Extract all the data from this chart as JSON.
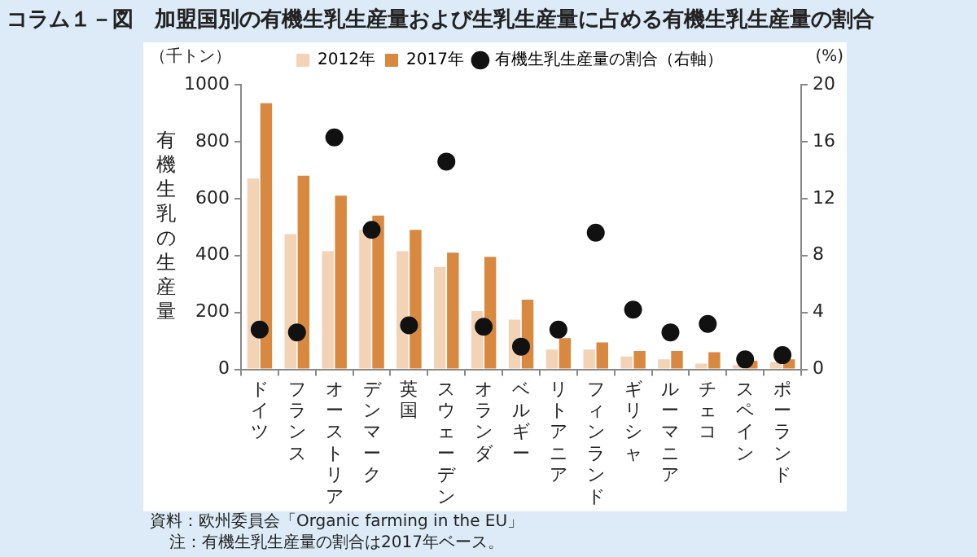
{
  "chart_data": {
    "type": "bar",
    "title": "コラム１－図　加盟国別の有機生乳生産量および生乳生産量に占める有機生乳生産量の割合",
    "ylabel": "有機生乳の生産量",
    "y2label": "(%)",
    "categories": [
      "ドイツ",
      "フランス",
      "オーストリア",
      "デンマーク",
      "英国",
      "スウェーデン",
      "オランダ",
      "ベルギー",
      "リトアニア",
      "フィンランド",
      "ギリシャ",
      "ルーマニア",
      "チェコ",
      "スペイン",
      "ポーランド"
    ],
    "series": [
      {
        "name": "2012年",
        "color": "#f2d3b6",
        "values": [
          670,
          475,
          415,
          490,
          415,
          360,
          205,
          175,
          70,
          70,
          45,
          35,
          20,
          15,
          25
        ]
      },
      {
        "name": "2017年",
        "color": "#d9883f",
        "values": [
          935,
          680,
          610,
          540,
          490,
          410,
          395,
          245,
          110,
          95,
          65,
          65,
          60,
          30,
          35
        ]
      },
      {
        "name": "有機生乳生産量の割合（右軸）",
        "type": "scatter",
        "axis": "y2",
        "color": "#111111",
        "values": [
          2.8,
          2.6,
          16.3,
          9.8,
          3.1,
          14.6,
          3.0,
          1.6,
          2.8,
          9.6,
          4.2,
          2.6,
          3.2,
          0.7,
          1.0
        ]
      }
    ],
    "ylim": [
      0,
      1000
    ],
    "yticks": [
      0,
      200,
      400,
      600,
      800,
      1000
    ],
    "y2lim": [
      0,
      20
    ],
    "y2ticks": [
      0,
      4,
      8,
      12,
      16,
      20
    ],
    "marker": "circle",
    "legend": "top",
    "annotations": [
      "（千トン）",
      "資料：欧州委員会「Organic farming in the EU」",
      "注：有機生乳生産量の割合は2017年ベース。"
    ]
  }
}
